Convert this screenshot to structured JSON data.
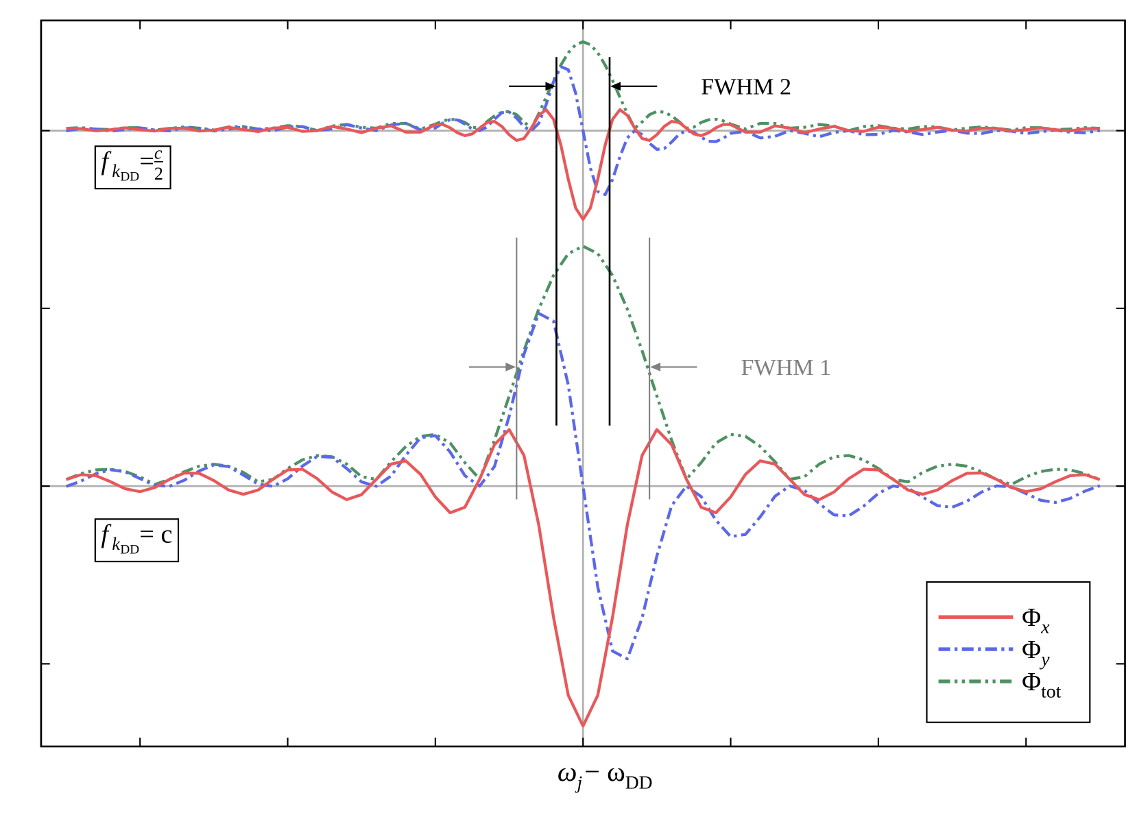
{
  "chart_data": {
    "type": "line",
    "x_label": [
      {
        "text": "ω"
      },
      {
        "text": "j",
        "sub": 1
      },
      {
        "text": " − ω"
      },
      {
        "text": "DD",
        "sub": 1
      }
    ],
    "xlim": [
      -3.67,
      3.67
    ],
    "ylim": [
      -1.465,
      2.62
    ],
    "xticks": [
      {
        "value": -3,
        "label": null
      },
      {
        "value": -2,
        "label": null
      },
      {
        "value": -1,
        "label": null
      },
      {
        "value": 0,
        "label": null
      },
      {
        "value": 1,
        "label": null
      },
      {
        "value": 2,
        "label": null
      },
      {
        "value": 3,
        "label": null
      }
    ],
    "yticks": [
      {
        "value": -1,
        "label": null
      },
      {
        "value": 0,
        "label": null
      },
      {
        "value": 1,
        "label": null
      },
      {
        "value": 2,
        "label": null
      }
    ],
    "hlines": [
      0,
      2
    ],
    "vlines": [
      0
    ],
    "legend": "lower right",
    "series": [
      {
        "name": "Φ",
        "name_sub": "x",
        "color": "#e8585a",
        "dash": "solid",
        "x": [
          -3.5,
          -3.4,
          -3.3,
          -3.2,
          -3.1,
          -3.0,
          -2.9,
          -2.8,
          -2.7,
          -2.6,
          -2.5,
          -2.4,
          -2.3,
          -2.2,
          -2.1,
          -2.0,
          -1.9,
          -1.8,
          -1.7,
          -1.6,
          -1.5,
          -1.4,
          -1.3,
          -1.2,
          -1.1,
          -1.0,
          -0.9,
          -0.8,
          -0.7,
          -0.6,
          -0.5,
          -0.4,
          -0.3,
          -0.2,
          -0.1,
          0,
          0.1,
          0.2,
          0.3,
          0.4,
          0.5,
          0.6,
          0.7,
          0.8,
          0.9,
          1.0,
          1.1,
          1.2,
          1.3,
          1.4,
          1.5,
          1.6,
          1.7,
          1.8,
          1.9,
          2.0,
          2.1,
          2.2,
          2.3,
          2.4,
          2.5,
          2.6,
          2.7,
          2.8,
          2.9,
          3.0,
          3.1,
          3.2,
          3.3,
          3.4,
          3.5
        ],
        "values": [
          0.037,
          0.064,
          0.059,
          0.025,
          -0.015,
          -0.031,
          -0.008,
          0.038,
          0.074,
          0.072,
          0.031,
          -0.022,
          -0.046,
          -0.022,
          0.038,
          0.091,
          0.095,
          0.042,
          -0.033,
          -0.076,
          -0.048,
          0.038,
          0.124,
          0.142,
          0.066,
          -0.061,
          -0.15,
          -0.119,
          0.039,
          0.233,
          0.318,
          0.173,
          -0.218,
          -0.737,
          -1.177,
          -1.35,
          -1.177,
          -0.737,
          -0.218,
          0.173,
          0.318,
          0.233,
          0.039,
          -0.119,
          -0.15,
          -0.061,
          0.066,
          0.142,
          0.124,
          0.038,
          -0.048,
          -0.076,
          -0.033,
          0.042,
          0.095,
          0.091,
          0.038,
          -0.022,
          -0.046,
          -0.022,
          0.031,
          0.072,
          0.074,
          0.038,
          -0.008,
          -0.031,
          -0.015,
          0.025,
          0.059,
          0.064,
          0.037
        ]
      },
      {
        "name": "Φ",
        "name_sub": "y",
        "color": "#5b68e8",
        "dash": "dashdot",
        "x": [
          -3.5,
          -3.4,
          -3.3,
          -3.2,
          -3.1,
          -3.0,
          -2.9,
          -2.8,
          -2.7,
          -2.6,
          -2.5,
          -2.4,
          -2.3,
          -2.2,
          -2.1,
          -2.0,
          -1.9,
          -1.8,
          -1.7,
          -1.6,
          -1.5,
          -1.4,
          -1.3,
          -1.2,
          -1.1,
          -1.0,
          -0.9,
          -0.8,
          -0.7,
          -0.6,
          -0.5,
          -0.4,
          -0.3,
          -0.2,
          -0.1,
          0,
          0.1,
          0.2,
          0.3,
          0.4,
          0.5,
          0.6,
          0.7,
          0.8,
          0.9,
          1.0,
          1.1,
          1.2,
          1.3,
          1.4,
          1.5,
          1.6,
          1.7,
          1.8,
          1.9,
          2.0,
          2.1,
          2.2,
          2.3,
          2.4,
          2.5,
          2.6,
          2.7,
          2.8,
          2.9,
          3.0,
          3.1,
          3.2,
          3.3,
          3.4,
          3.5
        ],
        "values": [
          -0.002,
          0.028,
          0.069,
          0.092,
          0.08,
          0.042,
          0.004,
          -0.001,
          0.033,
          0.085,
          0.119,
          0.11,
          0.062,
          0.011,
          -0.001,
          0.041,
          0.113,
          0.167,
          0.162,
          0.099,
          0.024,
          -0.001,
          0.057,
          0.173,
          0.272,
          0.284,
          0.192,
          0.059,
          0,
          0.11,
          0.394,
          0.742,
          0.972,
          0.928,
          0.569,
          0,
          -0.569,
          -0.928,
          -0.972,
          -0.742,
          -0.394,
          -0.11,
          0,
          -0.059,
          -0.192,
          -0.284,
          -0.272,
          -0.173,
          -0.057,
          0.001,
          -0.024,
          -0.099,
          -0.162,
          -0.167,
          -0.113,
          -0.041,
          0.001,
          -0.011,
          -0.062,
          -0.11,
          -0.119,
          -0.085,
          -0.033,
          0.001,
          -0.004,
          -0.042,
          -0.08,
          -0.092,
          -0.069,
          -0.028,
          0.002
        ]
      },
      {
        "name": "Φ",
        "name_sub": "tot",
        "color": "#4e9162",
        "dash": "dashdotdot",
        "x": [
          -3.5,
          -3.4,
          -3.3,
          -3.2,
          -3.1,
          -3.0,
          -2.9,
          -2.8,
          -2.7,
          -2.6,
          -2.5,
          -2.4,
          -2.3,
          -2.2,
          -2.1,
          -2.0,
          -1.9,
          -1.8,
          -1.7,
          -1.6,
          -1.5,
          -1.4,
          -1.3,
          -1.2,
          -1.1,
          -1.0,
          -0.9,
          -0.8,
          -0.7,
          -0.6,
          -0.5,
          -0.4,
          -0.3,
          -0.2,
          -0.1,
          0,
          0.1,
          0.2,
          0.3,
          0.4,
          0.5,
          0.6,
          0.7,
          0.8,
          0.9,
          1.0,
          1.1,
          1.2,
          1.3,
          1.4,
          1.5,
          1.6,
          1.7,
          1.8,
          1.9,
          2.0,
          2.1,
          2.2,
          2.3,
          2.4,
          2.5,
          2.6,
          2.7,
          2.8,
          2.9,
          3.0,
          3.1,
          3.2,
          3.3,
          3.4,
          3.5
        ],
        "values": [
          0.037,
          0.07,
          0.091,
          0.095,
          0.082,
          0.052,
          0.009,
          0.038,
          0.081,
          0.112,
          0.123,
          0.112,
          0.077,
          0.024,
          0.038,
          0.099,
          0.148,
          0.172,
          0.165,
          0.124,
          0.053,
          0.038,
          0.137,
          0.223,
          0.28,
          0.291,
          0.243,
          0.132,
          0.039,
          0.258,
          0.507,
          0.762,
          0.996,
          1.185,
          1.308,
          1.35,
          1.308,
          1.185,
          0.996,
          0.762,
          0.507,
          0.258,
          0.039,
          0.132,
          0.243,
          0.291,
          0.28,
          0.223,
          0.137,
          0.038,
          0.053,
          0.124,
          0.165,
          0.172,
          0.148,
          0.099,
          0.038,
          0.024,
          0.077,
          0.112,
          0.123,
          0.112,
          0.081,
          0.038,
          0.009,
          0.052,
          0.082,
          0.095,
          0.091,
          0.07,
          0.037
        ]
      },
      {
        "color": "#e8585a",
        "dash": "solid",
        "x": [
          -3.5,
          -3.4,
          -3.3,
          -3.2,
          -3.1,
          -3.0,
          -2.9,
          -2.8,
          -2.7,
          -2.6,
          -2.5,
          -2.4,
          -2.3,
          -2.2,
          -2.1,
          -2.0,
          -1.9,
          -1.8,
          -1.7,
          -1.6,
          -1.5,
          -1.4,
          -1.3,
          -1.2,
          -1.1,
          -1.0,
          -0.95,
          -0.9,
          -0.85,
          -0.8,
          -0.75,
          -0.7,
          -0.65,
          -0.6,
          -0.55,
          -0.5,
          -0.45,
          -0.4,
          -0.35,
          -0.3,
          -0.25,
          -0.2,
          -0.15,
          -0.1,
          -0.05,
          0,
          0.05,
          0.1,
          0.15,
          0.2,
          0.25,
          0.3,
          0.35,
          0.4,
          0.45,
          0.5,
          0.55,
          0.6,
          0.65,
          0.7,
          0.75,
          0.8,
          0.85,
          0.9,
          0.95,
          1.0,
          1.1,
          1.2,
          1.3,
          1.4,
          1.5,
          1.6,
          1.7,
          1.8,
          1.9,
          2.0,
          2.1,
          2.2,
          2.3,
          2.4,
          2.5,
          2.6,
          2.7,
          2.8,
          2.9,
          3.0,
          3.1,
          3.2,
          3.3,
          3.4,
          3.5
        ],
        "values": [
          2.013,
          2.011,
          1.999,
          2.005,
          2.016,
          2.005,
          1.998,
          2.013,
          2.014,
          1.998,
          2.003,
          2.019,
          2.006,
          1.995,
          2.014,
          2.019,
          1.996,
          2.0,
          2.024,
          2.009,
          1.989,
          2.014,
          2.027,
          1.992,
          1.992,
          2.034,
          2.035,
          2.016,
          1.988,
          1.972,
          1.982,
          2.014,
          2.046,
          2.052,
          2.024,
          1.977,
          1.945,
          1.956,
          2.014,
          2.086,
          2.118,
          2.064,
          1.919,
          1.727,
          1.565,
          1.501,
          1.565,
          1.727,
          1.919,
          2.064,
          2.118,
          2.086,
          2.014,
          1.956,
          1.945,
          1.977,
          2.024,
          2.052,
          2.046,
          2.014,
          1.982,
          1.972,
          1.988,
          2.016,
          2.035,
          2.034,
          1.992,
          1.992,
          2.027,
          2.014,
          1.989,
          2.009,
          2.024,
          2.0,
          1.996,
          2.019,
          2.014,
          1.995,
          2.006,
          2.019,
          2.003,
          1.998,
          2.014,
          2.013,
          1.998,
          2.005,
          2.016,
          2.005,
          1.999,
          2.011,
          2.013
        ]
      },
      {
        "color": "#5b68e8",
        "dash": "dashdot",
        "x": [
          -3.5,
          -3.4,
          -3.3,
          -3.2,
          -3.1,
          -3.0,
          -2.9,
          -2.8,
          -2.7,
          -2.6,
          -2.5,
          -2.4,
          -2.3,
          -2.2,
          -2.1,
          -2.0,
          -1.9,
          -1.8,
          -1.7,
          -1.6,
          -1.5,
          -1.4,
          -1.3,
          -1.2,
          -1.1,
          -1.0,
          -0.95,
          -0.9,
          -0.85,
          -0.8,
          -0.75,
          -0.7,
          -0.65,
          -0.6,
          -0.55,
          -0.5,
          -0.45,
          -0.4,
          -0.35,
          -0.3,
          -0.25,
          -0.2,
          -0.15,
          -0.1,
          -0.05,
          0,
          0.05,
          0.1,
          0.15,
          0.2,
          0.25,
          0.3,
          0.35,
          0.4,
          0.45,
          0.5,
          0.55,
          0.6,
          0.65,
          0.7,
          0.75,
          0.8,
          0.85,
          0.9,
          0.95,
          1.0,
          1.1,
          1.2,
          1.3,
          1.4,
          1.5,
          1.6,
          1.7,
          1.8,
          1.9,
          2.0,
          2.1,
          2.2,
          2.3,
          2.4,
          2.5,
          2.6,
          2.7,
          2.8,
          2.9,
          3.0,
          3.1,
          3.2,
          3.3,
          3.4,
          3.5
        ],
        "values": [
          1.999,
          2.012,
          2.009,
          1.997,
          2.006,
          2.016,
          2.003,
          1.999,
          2.016,
          2.014,
          1.998,
          2.008,
          2.022,
          2.007,
          1.999,
          2.021,
          2.023,
          2.0,
          2.01,
          2.034,
          2.015,
          2.0,
          2.032,
          2.041,
          2.004,
          2.015,
          2.042,
          2.062,
          2.06,
          2.037,
          2.009,
          2.0,
          2.021,
          2.064,
          2.101,
          2.105,
          2.071,
          2.022,
          2.0,
          2.041,
          2.146,
          2.275,
          2.36,
          2.343,
          2.211,
          2.0,
          1.789,
          1.657,
          1.64,
          1.725,
          1.854,
          1.959,
          2.0,
          1.978,
          1.929,
          1.895,
          1.899,
          1.936,
          1.979,
          2.0,
          1.991,
          1.963,
          1.94,
          1.938,
          1.958,
          1.985,
          1.996,
          1.959,
          1.968,
          2.0,
          1.985,
          1.966,
          1.99,
          2.0,
          1.977,
          1.979,
          2.001,
          1.993,
          1.978,
          1.992,
          2.002,
          1.986,
          1.984,
          2.001,
          1.997,
          1.984,
          1.994,
          2.003,
          1.991,
          1.988,
          2.001
        ]
      },
      {
        "color": "#4e9162",
        "dash": "dashdotdot",
        "x": [
          -3.5,
          -3.4,
          -3.3,
          -3.2,
          -3.1,
          -3.0,
          -2.9,
          -2.8,
          -2.7,
          -2.6,
          -2.5,
          -2.4,
          -2.3,
          -2.2,
          -2.1,
          -2.0,
          -1.9,
          -1.8,
          -1.7,
          -1.6,
          -1.5,
          -1.4,
          -1.3,
          -1.2,
          -1.1,
          -1.0,
          -0.95,
          -0.9,
          -0.85,
          -0.8,
          -0.75,
          -0.7,
          -0.65,
          -0.6,
          -0.55,
          -0.5,
          -0.45,
          -0.4,
          -0.35,
          -0.3,
          -0.25,
          -0.2,
          -0.15,
          -0.1,
          -0.05,
          0,
          0.05,
          0.1,
          0.15,
          0.2,
          0.25,
          0.3,
          0.35,
          0.4,
          0.45,
          0.5,
          0.55,
          0.6,
          0.65,
          0.7,
          0.75,
          0.8,
          0.85,
          0.9,
          0.95,
          1.0,
          1.1,
          1.2,
          1.3,
          1.4,
          1.5,
          1.6,
          1.7,
          1.8,
          1.9,
          2.0,
          2.1,
          2.2,
          2.3,
          2.4,
          2.5,
          2.6,
          2.7,
          2.8,
          2.9,
          3.0,
          3.1,
          3.2,
          3.3,
          3.4,
          3.5
        ],
        "values": [
          2.013,
          2.017,
          2.009,
          2.006,
          2.017,
          2.017,
          2.003,
          2.013,
          2.021,
          2.014,
          2.004,
          2.021,
          2.023,
          2.009,
          2.014,
          2.028,
          2.023,
          2.0,
          2.026,
          2.035,
          2.019,
          2.014,
          2.041,
          2.041,
          2.009,
          2.037,
          2.055,
          2.064,
          2.061,
          2.046,
          2.02,
          2.014,
          2.051,
          2.083,
          2.104,
          2.108,
          2.09,
          2.049,
          2.014,
          2.095,
          2.188,
          2.282,
          2.369,
          2.438,
          2.484,
          2.5,
          2.484,
          2.438,
          2.369,
          2.282,
          2.188,
          2.095,
          2.014,
          2.049,
          2.09,
          2.108,
          2.104,
          2.083,
          2.051,
          2.014,
          2.02,
          2.046,
          2.061,
          2.064,
          2.055,
          2.037,
          2.009,
          2.041,
          2.041,
          2.014,
          2.019,
          2.035,
          2.026,
          2.0,
          2.023,
          2.028,
          2.014,
          2.009,
          2.023,
          2.021,
          2.004,
          2.014,
          2.021,
          2.013,
          2.003,
          2.017,
          2.017,
          2.006,
          2.009,
          2.017,
          2.013
        ]
      }
    ],
    "fwhm": [
      {
        "label": "FWHM 2",
        "left": -0.18,
        "right": 0.18,
        "color": "#000000"
      },
      {
        "label": "FWHM 1",
        "left": -0.45,
        "right": 0.45,
        "color": "#808080"
      }
    ],
    "box_labels": [
      [
        {
          "text": "f"
        },
        {
          "text": "k",
          "sub": 1
        },
        {
          "text": "DD",
          "sub": 2
        },
        {
          "text": " = "
        },
        {
          "text": "c",
          "frac": "num"
        },
        {
          "text": "2",
          "frac": "den"
        }
      ],
      [
        {
          "text": "f"
        },
        {
          "text": "k",
          "sub": 1
        },
        {
          "text": "DD",
          "sub": 2
        },
        {
          "text": " = c"
        }
      ]
    ]
  }
}
